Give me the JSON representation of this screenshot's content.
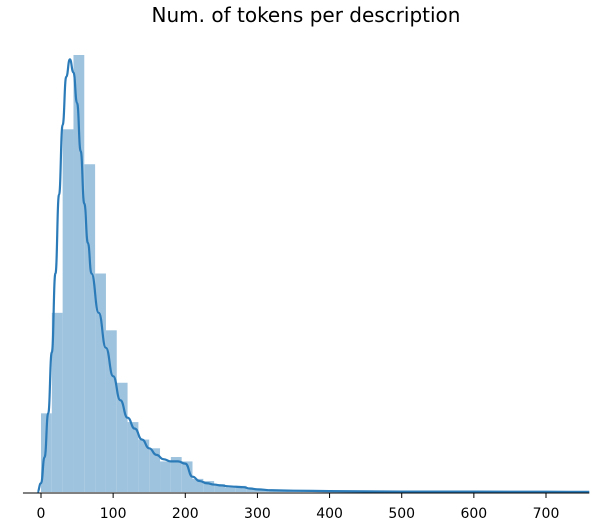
{
  "chart_data": {
    "type": "histogram",
    "title": "Num. of tokens per description",
    "xlabel": "",
    "ylabel": "",
    "xlim": [
      -25,
      760
    ],
    "x_ticks": [
      0,
      100,
      200,
      300,
      400,
      500,
      600,
      700
    ],
    "y_ticks_shown": false,
    "grid": false,
    "bar_color": "#9ec3de",
    "kde_color": "#2b7bb9",
    "bin_width": 15,
    "bins": [
      {
        "x0": 0,
        "x1": 15,
        "value": 0.18
      },
      {
        "x0": 15,
        "x1": 30,
        "value": 0.41
      },
      {
        "x0": 30,
        "x1": 45,
        "value": 0.83
      },
      {
        "x0": 45,
        "x1": 60,
        "value": 1.0
      },
      {
        "x0": 60,
        "x1": 75,
        "value": 0.75
      },
      {
        "x0": 75,
        "x1": 90,
        "value": 0.5
      },
      {
        "x0": 90,
        "x1": 105,
        "value": 0.37
      },
      {
        "x0": 105,
        "x1": 120,
        "value": 0.25
      },
      {
        "x0": 120,
        "x1": 135,
        "value": 0.16
      },
      {
        "x0": 135,
        "x1": 150,
        "value": 0.12
      },
      {
        "x0": 150,
        "x1": 165,
        "value": 0.1
      },
      {
        "x0": 165,
        "x1": 180,
        "value": 0.07
      },
      {
        "x0": 180,
        "x1": 195,
        "value": 0.08
      },
      {
        "x0": 195,
        "x1": 210,
        "value": 0.07
      },
      {
        "x0": 210,
        "x1": 225,
        "value": 0.03
      },
      {
        "x0": 225,
        "x1": 240,
        "value": 0.025
      },
      {
        "x0": 240,
        "x1": 255,
        "value": 0.018
      },
      {
        "x0": 255,
        "x1": 270,
        "value": 0.01
      },
      {
        "x0": 270,
        "x1": 285,
        "value": 0.014
      },
      {
        "x0": 285,
        "x1": 300,
        "value": 0.008
      },
      {
        "x0": 300,
        "x1": 315,
        "value": 0.004
      },
      {
        "x0": 315,
        "x1": 330,
        "value": 0.003
      },
      {
        "x0": 330,
        "x1": 345,
        "value": 0.002
      },
      {
        "x0": 345,
        "x1": 360,
        "value": 0.002
      },
      {
        "x0": 360,
        "x1": 375,
        "value": 0.0015
      },
      {
        "x0": 375,
        "x1": 390,
        "value": 0.001
      },
      {
        "x0": 390,
        "x1": 405,
        "value": 0.001
      },
      {
        "x0": 405,
        "x1": 420,
        "value": 0.0008
      },
      {
        "x0": 420,
        "x1": 435,
        "value": 0.0006
      },
      {
        "x0": 435,
        "x1": 450,
        "value": 0.0005
      },
      {
        "x0": 450,
        "x1": 465,
        "value": 0.0007
      },
      {
        "x0": 465,
        "x1": 480,
        "value": 0.0005
      },
      {
        "x0": 480,
        "x1": 495,
        "value": 0.0004
      },
      {
        "x0": 495,
        "x1": 510,
        "value": 0.0003
      },
      {
        "x0": 510,
        "x1": 525,
        "value": 0.0003
      },
      {
        "x0": 525,
        "x1": 540,
        "value": 0.0002
      },
      {
        "x0": 540,
        "x1": 555,
        "value": 0.0002
      },
      {
        "x0": 555,
        "x1": 570,
        "value": 0.0002
      },
      {
        "x0": 570,
        "x1": 585,
        "value": 0.0002
      },
      {
        "x0": 585,
        "x1": 600,
        "value": 0.0002
      }
    ],
    "kde": {
      "x": [
        -5,
        0,
        5,
        10,
        15,
        20,
        25,
        30,
        35,
        40,
        45,
        50,
        55,
        60,
        65,
        70,
        80,
        90,
        100,
        110,
        120,
        130,
        140,
        150,
        160,
        170,
        180,
        190,
        200,
        210,
        220,
        230,
        240,
        250,
        260,
        270,
        280,
        290,
        300,
        320,
        350,
        400,
        450,
        500,
        600,
        700,
        760
      ],
      "y": [
        0.0,
        0.02,
        0.08,
        0.18,
        0.32,
        0.5,
        0.68,
        0.84,
        0.95,
        0.99,
        0.96,
        0.89,
        0.78,
        0.66,
        0.57,
        0.5,
        0.41,
        0.33,
        0.265,
        0.21,
        0.17,
        0.145,
        0.12,
        0.1,
        0.085,
        0.075,
        0.07,
        0.07,
        0.065,
        0.035,
        0.025,
        0.02,
        0.017,
        0.015,
        0.013,
        0.012,
        0.011,
        0.008,
        0.006,
        0.004,
        0.003,
        0.002,
        0.0015,
        0.001,
        0.0008,
        0.0005,
        0.0004
      ]
    }
  }
}
